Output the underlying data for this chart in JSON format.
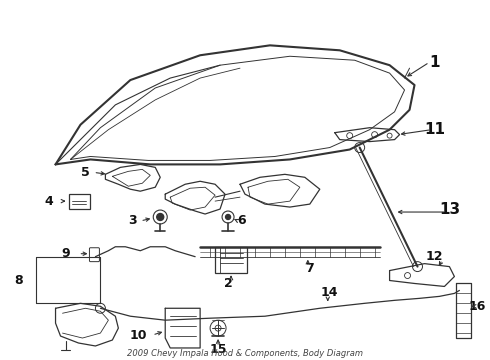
{
  "title": "2009 Chevy Impala Hood & Components, Body Diagram",
  "bg_color": "#ffffff",
  "line_color": "#333333",
  "label_color": "#111111",
  "fig_width": 4.9,
  "fig_height": 3.6,
  "dpi": 100
}
